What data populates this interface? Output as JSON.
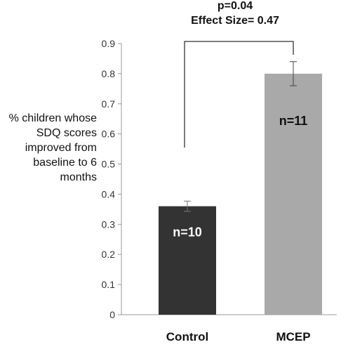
{
  "annotations": {
    "pvalue": "p=0.04",
    "effect_size": "Effect Size= 0.47"
  },
  "chart_data": {
    "type": "bar",
    "categories": [
      "Control",
      "MCEP"
    ],
    "values": [
      0.36,
      0.8
    ],
    "error": [
      0.017,
      0.04
    ],
    "bar_labels": [
      "n=10",
      "n=11"
    ],
    "bar_colors": [
      "#333333",
      "#a9a9a9"
    ],
    "ylabel": "% children whose SDQ scores improved from baseline to 6 months",
    "xlabel": "",
    "ylim": [
      0,
      0.9
    ],
    "yticks": [
      "0",
      "0.1",
      "0.2",
      "0.3",
      "0.4",
      "0.5",
      "0.6",
      "0.7",
      "0.8",
      "0.9"
    ],
    "grid": false
  }
}
